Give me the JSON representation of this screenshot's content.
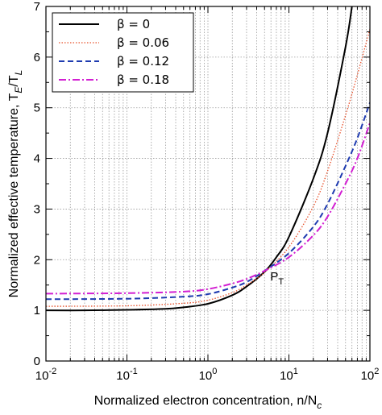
{
  "chart_data": {
    "type": "line",
    "xlabel": "Normalized electron concentration, n/N",
    "xlabel_sub": "c",
    "ylabel": "Normalized effective temperature, T",
    "ylabel_sub1": "E",
    "ylabel_mid": "/T",
    "ylabel_sub2": "L",
    "xscale": "log",
    "xlim": [
      0.01,
      100
    ],
    "ylim": [
      0,
      7
    ],
    "grid": true,
    "legend_position": "top-left",
    "x_tick_base": "10",
    "x_tick_exponents": [
      "-2",
      "-1",
      "0",
      "1",
      "2"
    ],
    "y_ticks": [
      "0",
      "1",
      "2",
      "3",
      "4",
      "5",
      "6",
      "7"
    ],
    "annotation": {
      "text": "P",
      "sub": "T",
      "x": 5.5,
      "y": 1.78
    },
    "series": [
      {
        "name": "β = 0",
        "color": "#000000",
        "dash": "solid",
        "x": [
          0.01,
          0.03,
          0.1,
          0.3,
          0.5,
          1,
          2,
          3,
          5,
          7,
          10,
          20,
          30,
          50,
          60
        ],
        "y": [
          1.0,
          1.0,
          1.01,
          1.03,
          1.06,
          1.13,
          1.3,
          1.47,
          1.76,
          2.05,
          2.45,
          3.6,
          4.5,
          6.2,
          7.0
        ]
      },
      {
        "name": "β = 0.06",
        "color": "#e8502a",
        "dash": "dotted",
        "x": [
          0.01,
          0.1,
          0.5,
          1,
          2,
          3,
          5,
          10,
          20,
          30,
          50,
          70,
          100
        ],
        "y": [
          1.08,
          1.09,
          1.14,
          1.2,
          1.35,
          1.5,
          1.75,
          2.25,
          3.05,
          3.75,
          4.85,
          5.65,
          6.55
        ]
      },
      {
        "name": "β = 0.12",
        "color": "#1f3bb0",
        "dash": "dashed",
        "x": [
          0.01,
          0.1,
          0.5,
          1,
          2,
          3,
          5,
          10,
          20,
          30,
          50,
          70,
          100
        ],
        "y": [
          1.22,
          1.23,
          1.27,
          1.32,
          1.45,
          1.56,
          1.78,
          2.13,
          2.65,
          3.1,
          3.85,
          4.4,
          5.1
        ]
      },
      {
        "name": "β = 0.18",
        "color": "#d21fd2",
        "dash": "dashdot",
        "x": [
          0.01,
          0.1,
          0.5,
          1,
          2,
          3,
          5,
          10,
          20,
          30,
          50,
          70,
          100
        ],
        "y": [
          1.33,
          1.34,
          1.37,
          1.42,
          1.53,
          1.62,
          1.78,
          2.05,
          2.48,
          2.85,
          3.5,
          4.0,
          4.7
        ]
      }
    ]
  }
}
